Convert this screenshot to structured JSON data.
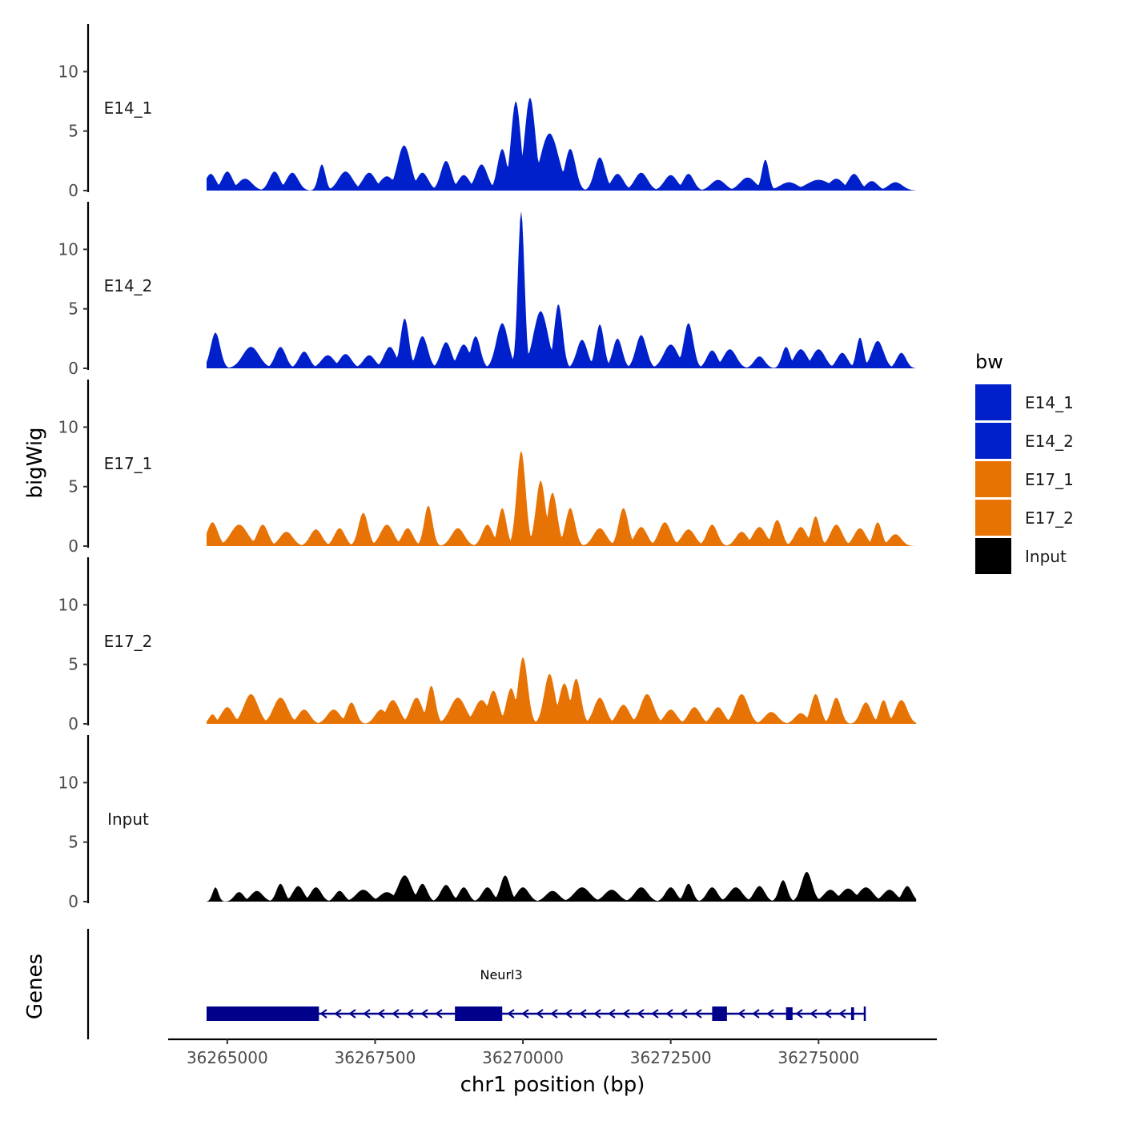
{
  "chart_data": {
    "type": "area",
    "ylabel": "bigWig",
    "xlabel": "chr1 position (bp)",
    "genes_label": "Genes",
    "xlim": [
      36264000,
      36277000
    ],
    "ylim": [
      0,
      14
    ],
    "data_x_range": [
      36264650,
      36276650
    ],
    "yticks": [
      0,
      5,
      10
    ],
    "xticks": [
      36265000,
      36267500,
      36270000,
      36272500,
      36275000
    ],
    "x_tick_labels": [
      "36265000",
      "36267500",
      "36270000",
      "36272500",
      "36275000"
    ],
    "legend": {
      "title": "bw",
      "entries": [
        {
          "label": "E14_1",
          "color": "#0020CC"
        },
        {
          "label": "E14_2",
          "color": "#0020CC"
        },
        {
          "label": "E17_1",
          "color": "#E87305"
        },
        {
          "label": "E17_2",
          "color": "#E87305"
        },
        {
          "label": "Input",
          "color": "#000000"
        }
      ]
    },
    "series": [
      {
        "name": "E14_1",
        "color": "#0020CC",
        "peaks": [
          [
            36264720,
            1.4,
            90
          ],
          [
            36265000,
            1.6,
            90
          ],
          [
            36265300,
            1.0,
            120
          ],
          [
            36265800,
            1.6,
            90
          ],
          [
            36266100,
            1.5,
            100
          ],
          [
            36266600,
            2.2,
            60
          ],
          [
            36267000,
            1.6,
            120
          ],
          [
            36267400,
            1.5,
            110
          ],
          [
            36267700,
            1.2,
            120
          ],
          [
            36267990,
            3.8,
            110
          ],
          [
            36268300,
            1.5,
            100
          ],
          [
            36268700,
            2.5,
            90
          ],
          [
            36269000,
            1.3,
            100
          ],
          [
            36269300,
            2.2,
            100
          ],
          [
            36269650,
            3.5,
            80
          ],
          [
            36269880,
            7.5,
            80
          ],
          [
            36270120,
            7.8,
            90
          ],
          [
            36270450,
            4.8,
            150
          ],
          [
            36270800,
            3.5,
            90
          ],
          [
            36271300,
            2.8,
            90
          ],
          [
            36271600,
            1.4,
            100
          ],
          [
            36272000,
            1.5,
            110
          ],
          [
            36272500,
            1.3,
            110
          ],
          [
            36272800,
            1.4,
            90
          ],
          [
            36273300,
            0.9,
            120
          ],
          [
            36273800,
            1.1,
            130
          ],
          [
            36274100,
            2.6,
            60
          ],
          [
            36274500,
            0.7,
            150
          ],
          [
            36275000,
            0.9,
            200
          ],
          [
            36275300,
            1.0,
            120
          ],
          [
            36275600,
            1.4,
            100
          ],
          [
            36275900,
            0.8,
            100
          ],
          [
            36276300,
            0.7,
            120
          ]
        ]
      },
      {
        "name": "E14_2",
        "color": "#0020CC",
        "peaks": [
          [
            36264800,
            3.0,
            80
          ],
          [
            36265400,
            1.8,
            140
          ],
          [
            36265900,
            1.8,
            90
          ],
          [
            36266300,
            1.4,
            90
          ],
          [
            36266700,
            1.1,
            110
          ],
          [
            36267000,
            1.2,
            100
          ],
          [
            36267400,
            1.1,
            100
          ],
          [
            36267750,
            1.8,
            100
          ],
          [
            36268000,
            4.2,
            70
          ],
          [
            36268300,
            2.7,
            90
          ],
          [
            36268700,
            2.2,
            90
          ],
          [
            36269000,
            2.0,
            100
          ],
          [
            36269200,
            2.7,
            80
          ],
          [
            36269650,
            3.8,
            100
          ],
          [
            36269970,
            13.2,
            55
          ],
          [
            36270300,
            4.8,
            120
          ],
          [
            36270600,
            5.4,
            70
          ],
          [
            36271000,
            2.4,
            90
          ],
          [
            36271300,
            3.7,
            70
          ],
          [
            36271600,
            2.5,
            80
          ],
          [
            36272000,
            2.8,
            90
          ],
          [
            36272500,
            2.0,
            120
          ],
          [
            36272800,
            3.8,
            80
          ],
          [
            36273200,
            1.5,
            90
          ],
          [
            36273500,
            1.6,
            110
          ],
          [
            36274000,
            1.0,
            90
          ],
          [
            36274450,
            1.8,
            70
          ],
          [
            36274700,
            1.6,
            110
          ],
          [
            36275000,
            1.6,
            110
          ],
          [
            36275400,
            1.3,
            90
          ],
          [
            36275700,
            2.6,
            60
          ],
          [
            36276000,
            2.3,
            100
          ],
          [
            36276400,
            1.3,
            80
          ]
        ]
      },
      {
        "name": "E17_1",
        "color": "#E87305",
        "peaks": [
          [
            36264750,
            2.0,
            90
          ],
          [
            36265200,
            1.8,
            140
          ],
          [
            36265600,
            1.8,
            90
          ],
          [
            36266000,
            1.2,
            110
          ],
          [
            36266500,
            1.4,
            100
          ],
          [
            36266900,
            1.5,
            90
          ],
          [
            36267300,
            2.8,
            80
          ],
          [
            36267700,
            1.8,
            110
          ],
          [
            36268050,
            1.5,
            90
          ],
          [
            36268400,
            3.4,
            70
          ],
          [
            36268900,
            1.5,
            110
          ],
          [
            36269400,
            1.8,
            90
          ],
          [
            36269650,
            3.2,
            70
          ],
          [
            36269970,
            8.0,
            75
          ],
          [
            36270300,
            5.5,
            80
          ],
          [
            36270500,
            4.5,
            80
          ],
          [
            36270800,
            3.2,
            80
          ],
          [
            36271300,
            1.5,
            110
          ],
          [
            36271700,
            3.2,
            80
          ],
          [
            36272000,
            1.6,
            100
          ],
          [
            36272400,
            2.0,
            100
          ],
          [
            36272800,
            1.4,
            110
          ],
          [
            36273200,
            1.8,
            90
          ],
          [
            36273700,
            1.2,
            100
          ],
          [
            36274000,
            1.6,
            110
          ],
          [
            36274300,
            2.2,
            80
          ],
          [
            36274700,
            1.6,
            100
          ],
          [
            36274950,
            2.5,
            70
          ],
          [
            36275300,
            1.8,
            100
          ],
          [
            36275700,
            1.5,
            100
          ],
          [
            36276000,
            2.0,
            70
          ],
          [
            36276300,
            1.0,
            100
          ]
        ]
      },
      {
        "name": "E17_2",
        "color": "#E87305",
        "peaks": [
          [
            36264750,
            0.8,
            60
          ],
          [
            36265000,
            1.4,
            100
          ],
          [
            36265400,
            2.5,
            120
          ],
          [
            36265900,
            2.2,
            120
          ],
          [
            36266300,
            1.2,
            100
          ],
          [
            36266800,
            1.2,
            110
          ],
          [
            36267100,
            1.8,
            80
          ],
          [
            36267600,
            1.2,
            100
          ],
          [
            36267800,
            2.0,
            110
          ],
          [
            36268200,
            2.2,
            100
          ],
          [
            36268450,
            3.2,
            70
          ],
          [
            36268900,
            2.2,
            130
          ],
          [
            36269300,
            2.0,
            120
          ],
          [
            36269500,
            2.8,
            90
          ],
          [
            36269800,
            3.0,
            80
          ],
          [
            36270000,
            5.6,
            80
          ],
          [
            36270450,
            4.2,
            90
          ],
          [
            36270700,
            3.4,
            90
          ],
          [
            36270900,
            3.8,
            80
          ],
          [
            36271300,
            2.2,
            100
          ],
          [
            36271700,
            1.6,
            100
          ],
          [
            36272100,
            2.5,
            110
          ],
          [
            36272500,
            1.2,
            100
          ],
          [
            36272900,
            1.4,
            100
          ],
          [
            36273300,
            1.4,
            100
          ],
          [
            36273700,
            2.5,
            110
          ],
          [
            36274200,
            1.0,
            110
          ],
          [
            36274700,
            0.9,
            100
          ],
          [
            36274950,
            2.5,
            80
          ],
          [
            36275300,
            2.2,
            80
          ],
          [
            36275800,
            1.8,
            90
          ],
          [
            36276100,
            2.0,
            70
          ],
          [
            36276400,
            2.0,
            100
          ]
        ]
      },
      {
        "name": "Input",
        "color": "#000000",
        "peaks": [
          [
            36264800,
            1.2,
            50
          ],
          [
            36265200,
            0.8,
            80
          ],
          [
            36265500,
            0.9,
            100
          ],
          [
            36265900,
            1.5,
            70
          ],
          [
            36266200,
            1.3,
            90
          ],
          [
            36266500,
            1.2,
            90
          ],
          [
            36266900,
            0.9,
            80
          ],
          [
            36267300,
            1.0,
            120
          ],
          [
            36267700,
            0.8,
            120
          ],
          [
            36268000,
            2.2,
            110
          ],
          [
            36268300,
            1.5,
            80
          ],
          [
            36268700,
            1.4,
            90
          ],
          [
            36269000,
            1.2,
            80
          ],
          [
            36269400,
            1.2,
            90
          ],
          [
            36269700,
            2.2,
            80
          ],
          [
            36270000,
            1.2,
            100
          ],
          [
            36270500,
            0.9,
            110
          ],
          [
            36271000,
            1.2,
            130
          ],
          [
            36271500,
            1.0,
            120
          ],
          [
            36272000,
            1.2,
            110
          ],
          [
            36272500,
            1.2,
            90
          ],
          [
            36272800,
            1.5,
            70
          ],
          [
            36273200,
            1.2,
            90
          ],
          [
            36273600,
            1.2,
            110
          ],
          [
            36274000,
            1.3,
            90
          ],
          [
            36274400,
            1.8,
            70
          ],
          [
            36274800,
            2.5,
            90
          ],
          [
            36275200,
            1.0,
            110
          ],
          [
            36275500,
            1.1,
            120
          ],
          [
            36275800,
            1.2,
            120
          ],
          [
            36276200,
            1.0,
            110
          ],
          [
            36276500,
            1.3,
            80
          ]
        ]
      }
    ],
    "gene": {
      "name": "Neurl3",
      "strand": "-",
      "start": 36264650,
      "end": 36275700,
      "exons": [
        [
          36264650,
          36266550
        ],
        [
          36268850,
          36269650
        ],
        [
          36273200,
          36273450
        ],
        [
          36274450,
          36274560
        ],
        [
          36275550,
          36275600
        ]
      ],
      "color": "#00008B"
    }
  }
}
